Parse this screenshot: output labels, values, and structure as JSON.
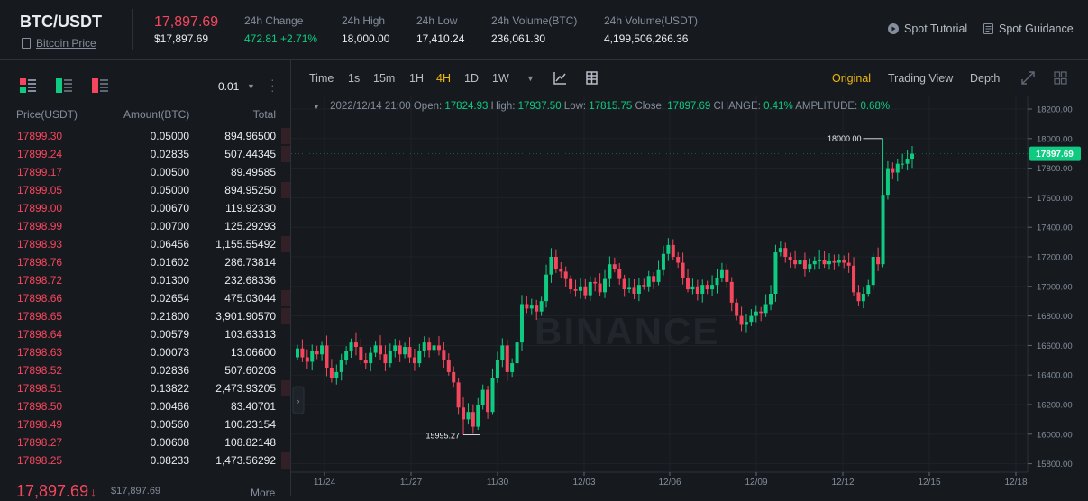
{
  "header": {
    "pair": "BTC/USDT",
    "subtitle_link": "Bitcoin Price",
    "last_price": "17,897.69",
    "last_price_usd": "$17,897.69",
    "stats": [
      {
        "label": "24h Change",
        "value": "472.81 +2.71%",
        "color": "#0ecb81"
      },
      {
        "label": "24h High",
        "value": "18,000.00"
      },
      {
        "label": "24h Low",
        "value": "17,410.24"
      },
      {
        "label": "24h Volume(BTC)",
        "value": "236,061.30"
      },
      {
        "label": "24h Volume(USDT)",
        "value": "4,199,506,266.36"
      }
    ],
    "links": [
      {
        "label": "Spot Tutorial",
        "icon": "play-circle-icon"
      },
      {
        "label": "Spot Guidance",
        "icon": "document-icon"
      }
    ]
  },
  "orderbook": {
    "tick_size": "0.01",
    "columns": {
      "price": "Price(USDT)",
      "amount": "Amount(BTC)",
      "total": "Total"
    },
    "asks": [
      {
        "price": "17899.30",
        "amount": "0.05000",
        "total": "894.96500",
        "depth": 0.03
      },
      {
        "price": "17899.24",
        "amount": "0.02835",
        "total": "507.44345",
        "depth": 0.03
      },
      {
        "price": "17899.17",
        "amount": "0.00500",
        "total": "89.49585",
        "depth": 0.0
      },
      {
        "price": "17899.05",
        "amount": "0.05000",
        "total": "894.95250",
        "depth": 0.03
      },
      {
        "price": "17899.00",
        "amount": "0.00670",
        "total": "119.92330",
        "depth": 0.0
      },
      {
        "price": "17898.99",
        "amount": "0.00700",
        "total": "125.29293",
        "depth": 0.0
      },
      {
        "price": "17898.93",
        "amount": "0.06456",
        "total": "1,155.55492",
        "depth": 0.03
      },
      {
        "price": "17898.76",
        "amount": "0.01602",
        "total": "286.73814",
        "depth": 0.0
      },
      {
        "price": "17898.72",
        "amount": "0.01300",
        "total": "232.68336",
        "depth": 0.0
      },
      {
        "price": "17898.66",
        "amount": "0.02654",
        "total": "475.03044",
        "depth": 0.03
      },
      {
        "price": "17898.65",
        "amount": "0.21800",
        "total": "3,901.90570",
        "depth": 0.03
      },
      {
        "price": "17898.64",
        "amount": "0.00579",
        "total": "103.63313",
        "depth": 0.0
      },
      {
        "price": "17898.63",
        "amount": "0.00073",
        "total": "13.06600",
        "depth": 0.0
      },
      {
        "price": "17898.52",
        "amount": "0.02836",
        "total": "507.60203",
        "depth": 0.0
      },
      {
        "price": "17898.51",
        "amount": "0.13822",
        "total": "2,473.93205",
        "depth": 0.03
      },
      {
        "price": "17898.50",
        "amount": "0.00466",
        "total": "83.40701",
        "depth": 0.0
      },
      {
        "price": "17898.49",
        "amount": "0.00560",
        "total": "100.23154",
        "depth": 0.0
      },
      {
        "price": "17898.27",
        "amount": "0.00608",
        "total": "108.82148",
        "depth": 0.0
      },
      {
        "price": "17898.25",
        "amount": "0.08233",
        "total": "1,473.56292",
        "depth": 0.03
      }
    ],
    "footer_price": "17,897.69",
    "footer_arrow": "↓",
    "footer_usd": "$17,897.69",
    "more_label": "More",
    "ask_color": "#f6465d"
  },
  "chart_toolbar": {
    "intervals": [
      "Time",
      "1s",
      "15m",
      "1H",
      "4H",
      "1D",
      "1W"
    ],
    "active_interval": "4H",
    "views": [
      "Original",
      "Trading View",
      "Depth"
    ],
    "active_view": "Original"
  },
  "ohlc_bar": {
    "datetime": "2022/12/14 21:00",
    "open_label": "Open:",
    "open": "17824.93",
    "high_label": "High:",
    "high": "17937.50",
    "low_label": "Low:",
    "low": "17815.75",
    "close_label": "Close:",
    "close": "17897.69",
    "change_label": "CHANGE:",
    "change": "0.41%",
    "amplitude_label": "AMPLITUDE:",
    "amplitude": "0.68%"
  },
  "chart_data": {
    "type": "candlestick",
    "x_labels": [
      "11/24",
      "11/27",
      "11/30",
      "12/03",
      "12/06",
      "12/09",
      "12/12",
      "12/15",
      "12/18"
    ],
    "y_ticks": [
      "18200.00",
      "18000.00",
      "17800.00",
      "17600.00",
      "17400.00",
      "17200.00",
      "17000.00",
      "16800.00",
      "16600.00",
      "16400.00",
      "16200.00",
      "16000.00",
      "15800.00"
    ],
    "ylim": [
      15800,
      18200
    ],
    "close_series": [
      16580,
      16520,
      16490,
      16560,
      16540,
      16600,
      16450,
      16380,
      16420,
      16500,
      16560,
      16620,
      16590,
      16500,
      16480,
      16550,
      16600,
      16540,
      16480,
      16560,
      16600,
      16540,
      16590,
      16520,
      16480,
      16560,
      16620,
      16570,
      16600,
      16570,
      16500,
      16420,
      16350,
      16180,
      16100,
      16150,
      16050,
      16200,
      16300,
      16150,
      16380,
      16500,
      16600,
      16420,
      16480,
      16620,
      16880,
      16850,
      16870,
      16830,
      16900,
      17080,
      17200,
      17120,
      17100,
      17050,
      16980,
      16970,
      17000,
      16940,
      17030,
      17020,
      16960,
      17050,
      17150,
      17120,
      17050,
      16980,
      16990,
      16950,
      17010,
      17000,
      17070,
      17030,
      17110,
      17220,
      17280,
      17200,
      17160,
      17060,
      16980,
      17000,
      16950,
      17010,
      16980,
      17010,
      17060,
      17110,
      17030,
      16890,
      16800,
      16740,
      16760,
      16800,
      16830,
      16820,
      16880,
      16950,
      17230,
      17260,
      17200,
      17180,
      17150,
      17180,
      17120,
      17150,
      17170,
      17180,
      17150,
      17170,
      17160,
      17180,
      17160,
      17140,
      16960,
      16900,
      16950,
      17010,
      17200,
      17150,
      17620,
      17800,
      17770,
      17830,
      17830,
      17860,
      17897.69
    ],
    "high_label": "18000.00",
    "low_label": "15995.27",
    "current_price_label": "17897.69",
    "watermark": "BINANCE",
    "up_color": "#0ecb81",
    "down_color": "#f6465d"
  }
}
